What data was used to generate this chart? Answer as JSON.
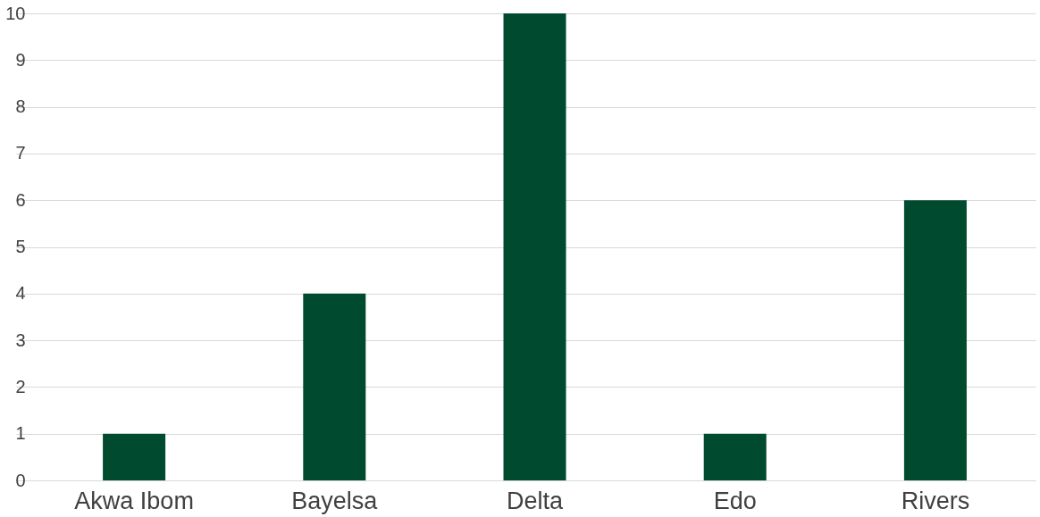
{
  "chart_data": {
    "type": "bar",
    "categories": [
      "Akwa Ibom",
      "Bayelsa",
      "Delta",
      "Edo",
      "Rivers"
    ],
    "values": [
      1,
      4,
      10,
      1,
      6
    ],
    "color": "#004b2f",
    "ylim": [
      0,
      10
    ],
    "yticks": [
      0,
      1,
      2,
      3,
      4,
      5,
      6,
      7,
      8,
      9,
      10
    ],
    "grid": "y"
  }
}
